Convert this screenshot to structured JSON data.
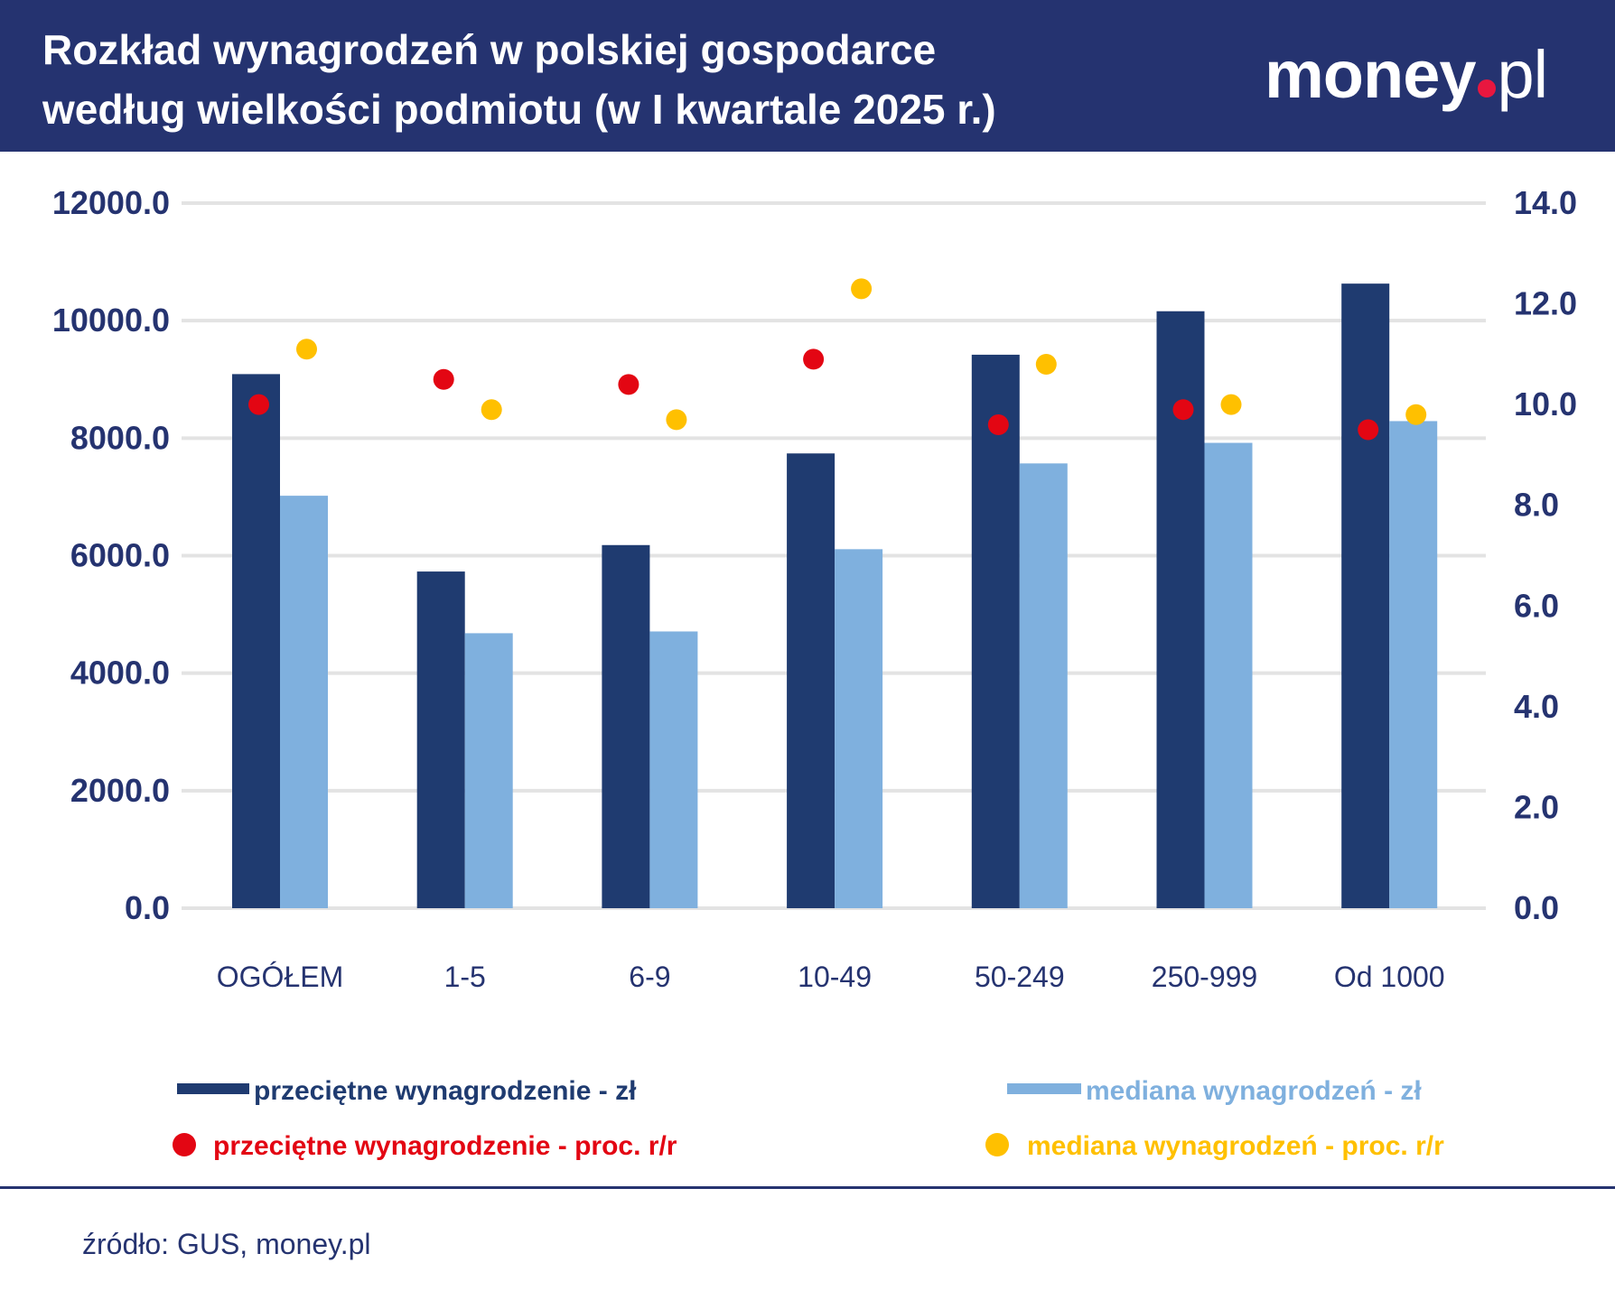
{
  "header": {
    "title_line1": "Rozkład wynagrodzeń w polskiej gospodarce",
    "title_line2": "według wielkości podmiotu (w I kwartale 2025 r.)",
    "logo": "money.pl"
  },
  "colors": {
    "header": "#253370",
    "avg_bar": "#1f3b70",
    "median_bar": "#7fb0de",
    "avg_pct": "#e30613",
    "median_pct": "#ffc000",
    "axis_text": "#253370",
    "grid": "#e3e3e3"
  },
  "chart_data": {
    "type": "bar",
    "categories": [
      "OGÓŁEM",
      "1-5",
      "6-9",
      "10-49",
      "50-249",
      "250-999",
      "Od 1000"
    ],
    "left_axis": {
      "ylim": [
        0,
        12000
      ],
      "ticks": [
        "0.0",
        "2000.0",
        "4000.0",
        "6000.0",
        "8000.0",
        "10000.0",
        "12000.0"
      ]
    },
    "right_axis": {
      "ylim": [
        0,
        14
      ],
      "ticks": [
        "0.0",
        "2.0",
        "4.0",
        "6.0",
        "8.0",
        "10.0",
        "12.0",
        "14.0"
      ]
    },
    "grid": true,
    "legend_placement": "bottom",
    "series": [
      {
        "name": "przeciętne wynagrodzenie - zł",
        "type": "bar",
        "axis": "left",
        "values": [
          9090,
          5730,
          6180,
          7740,
          9420,
          10160,
          10630
        ]
      },
      {
        "name": "mediana wynagrodzeń - zł",
        "type": "bar",
        "axis": "left",
        "values": [
          7020,
          4680,
          4710,
          6110,
          7570,
          7920,
          8290
        ]
      },
      {
        "name": "przeciętne wynagrodzenie - proc. r/r",
        "type": "scatter",
        "axis": "right",
        "values": [
          10.0,
          10.5,
          10.4,
          10.9,
          9.6,
          9.9,
          9.5
        ]
      },
      {
        "name": "mediana wynagrodzeń - proc. r/r",
        "type": "scatter",
        "axis": "right",
        "values": [
          11.1,
          9.9,
          9.7,
          12.3,
          10.8,
          10.0,
          9.8
        ]
      }
    ]
  },
  "footer": {
    "source": "źródło: GUS, money.pl"
  }
}
